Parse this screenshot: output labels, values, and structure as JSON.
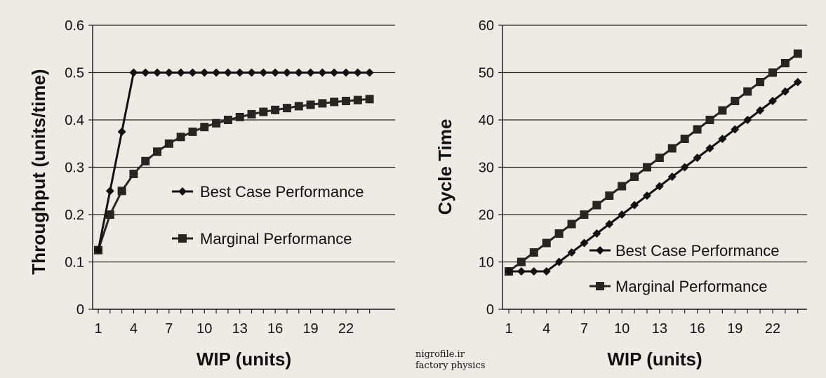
{
  "chart_data": [
    {
      "type": "line",
      "title": "",
      "xlabel": "WIP (units)",
      "ylabel": "Throughput (units/time)",
      "xlim": [
        1,
        24
      ],
      "ylim": [
        0,
        0.6
      ],
      "xticks": [
        1,
        4,
        7,
        10,
        13,
        16,
        19,
        22
      ],
      "yticks": [
        0,
        0.1,
        0.2,
        0.3,
        0.4,
        0.5,
        0.6
      ],
      "ytick_labels": [
        "0",
        "0.1",
        "0.2",
        "0.3",
        "0.4",
        "0.5",
        "0.6"
      ],
      "grid": "horizontal",
      "legend_placement": "center-right",
      "x": [
        1,
        2,
        3,
        4,
        5,
        6,
        7,
        8,
        9,
        10,
        11,
        12,
        13,
        14,
        15,
        16,
        17,
        18,
        19,
        20,
        21,
        22,
        23,
        24
      ],
      "series": [
        {
          "name": "Best Case Performance",
          "marker": "diamond",
          "values": [
            0.125,
            0.25,
            0.375,
            0.5,
            0.5,
            0.5,
            0.5,
            0.5,
            0.5,
            0.5,
            0.5,
            0.5,
            0.5,
            0.5,
            0.5,
            0.5,
            0.5,
            0.5,
            0.5,
            0.5,
            0.5,
            0.5,
            0.5,
            0.5
          ]
        },
        {
          "name": "Marginal Performance",
          "marker": "square",
          "values": [
            0.125,
            0.2,
            0.25,
            0.286,
            0.313,
            0.333,
            0.35,
            0.364,
            0.375,
            0.385,
            0.393,
            0.4,
            0.406,
            0.412,
            0.417,
            0.421,
            0.425,
            0.429,
            0.432,
            0.435,
            0.438,
            0.44,
            0.442,
            0.444
          ]
        }
      ]
    },
    {
      "type": "line",
      "title": "",
      "xlabel": "WIP (units)",
      "ylabel": "Cycle Time",
      "xlim": [
        1,
        24
      ],
      "ylim": [
        0,
        60
      ],
      "xticks": [
        1,
        4,
        7,
        10,
        13,
        16,
        19,
        22
      ],
      "yticks": [
        0,
        10,
        20,
        30,
        40,
        50,
        60
      ],
      "ytick_labels": [
        "0",
        "10",
        "20",
        "30",
        "40",
        "50",
        "60"
      ],
      "grid": "horizontal",
      "legend_placement": "lower-right",
      "x": [
        1,
        2,
        3,
        4,
        5,
        6,
        7,
        8,
        9,
        10,
        11,
        12,
        13,
        14,
        15,
        16,
        17,
        18,
        19,
        20,
        21,
        22,
        23,
        24
      ],
      "series": [
        {
          "name": "Best Case Performance",
          "marker": "diamond",
          "values": [
            8,
            8,
            8,
            8,
            10,
            12,
            14,
            16,
            18,
            20,
            22,
            24,
            26,
            28,
            30,
            32,
            34,
            36,
            38,
            40,
            42,
            44,
            46,
            48
          ]
        },
        {
          "name": "Marginal Performance",
          "marker": "square",
          "values": [
            8,
            10,
            12,
            14,
            16,
            18,
            20,
            22,
            24,
            26,
            28,
            30,
            32,
            34,
            36,
            38,
            40,
            42,
            44,
            46,
            48,
            50,
            52,
            54
          ]
        }
      ]
    }
  ],
  "watermark": {
    "line1": "nigrofile.ir",
    "line2": "factory physics"
  },
  "colors": {
    "background": "#efebe4",
    "best": "#111111",
    "marginal": "#2a2420",
    "grid": "#222222"
  }
}
